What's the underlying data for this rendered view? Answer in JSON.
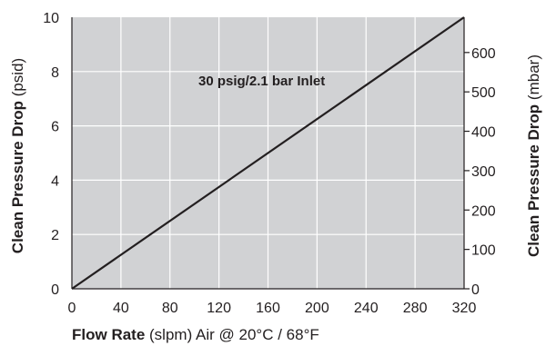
{
  "chart_data": {
    "type": "line",
    "annotation": "30 psig/2.1 bar Inlet",
    "x": [
      0,
      320
    ],
    "series": [
      {
        "values": [
          0,
          10
        ]
      }
    ],
    "x_ticks": [
      "0",
      "40",
      "80",
      "120",
      "160",
      "200",
      "240",
      "280",
      "320"
    ],
    "xlim": [
      0,
      320
    ],
    "ylim": [
      0,
      10
    ],
    "y_ticks": [
      "0",
      "2",
      "4",
      "6",
      "8",
      "10"
    ],
    "y2_ticks": [
      "0",
      "100",
      "200",
      "300",
      "400",
      "500",
      "600"
    ],
    "y2lim_mbar": [
      0,
      689.5
    ],
    "xlabel_bold": "Flow Rate",
    "xlabel_rest": " (slpm) Air @ 20°C / 68°F",
    "ylabel_bold": "Clean Pressure Drop",
    "ylabel_rest": " (psid)",
    "y2label_bold": "Clean Pressure Drop",
    "y2label_rest": " (mbar)",
    "grid": true,
    "colors": {
      "plot_bg": "#d1d2d4",
      "grid": "#ffffff",
      "line": "#231f20",
      "axis": "#231f20"
    }
  }
}
